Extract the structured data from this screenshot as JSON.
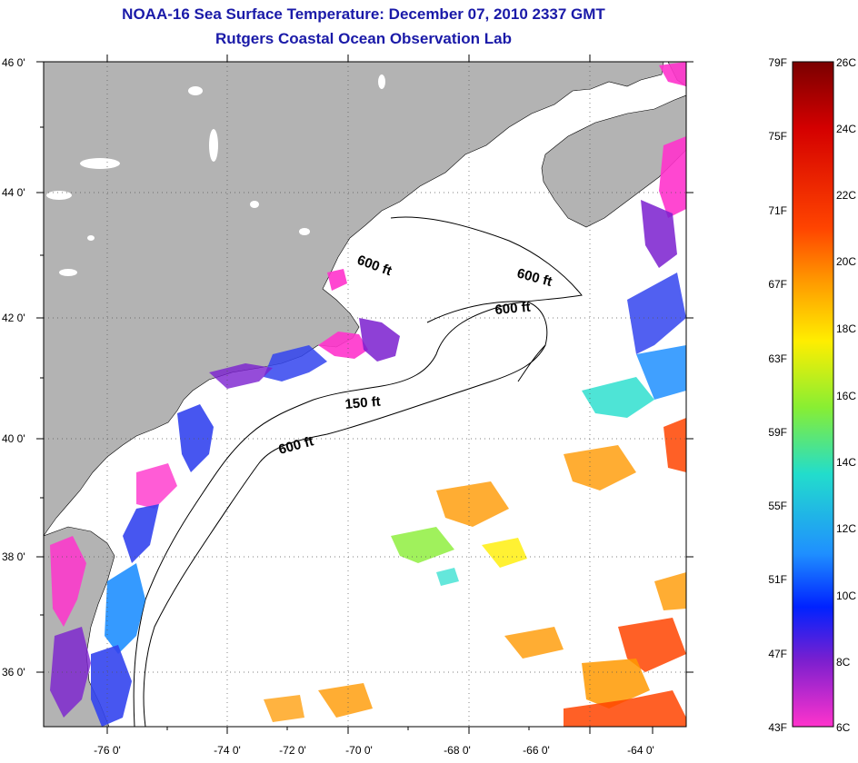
{
  "title_line1": "NOAA-16 Sea Surface Temperature:  December 07, 2010 2337 GMT",
  "title_line2": "Rutgers Coastal Ocean Observation Lab",
  "map": {
    "lat_ticks": [
      "46 0'",
      "44 0'",
      "42 0'",
      "40 0'",
      "38 0'",
      "36 0'"
    ],
    "lon_ticks": [
      "-76 0'",
      "-74 0'",
      "-72 0'",
      "-70 0'",
      "-68 0'",
      "-66 0'",
      "-64 0'"
    ],
    "contour_labels": [
      "600 ft",
      "600 ft",
      "600 ft",
      "150 ft",
      "600 ft"
    ],
    "land_color": "#b3b3b3",
    "water_color": "#ffffff"
  },
  "colorbar": {
    "fahrenheit_labels": [
      "79F",
      "75F",
      "71F",
      "67F",
      "63F",
      "59F",
      "55F",
      "51F",
      "47F",
      "43F"
    ],
    "celsius_labels": [
      "26C",
      "24C",
      "22C",
      "20C",
      "18C",
      "16C",
      "14C",
      "12C",
      "10C",
      "8C",
      "6C"
    ],
    "colors_top_to_bottom": [
      "#7a0000",
      "#d40000",
      "#ff4400",
      "#ff9900",
      "#ffee00",
      "#88ee33",
      "#22ddcc",
      "#1f8fff",
      "#0022ff",
      "#7a1fcf",
      "#ff33cc"
    ]
  }
}
